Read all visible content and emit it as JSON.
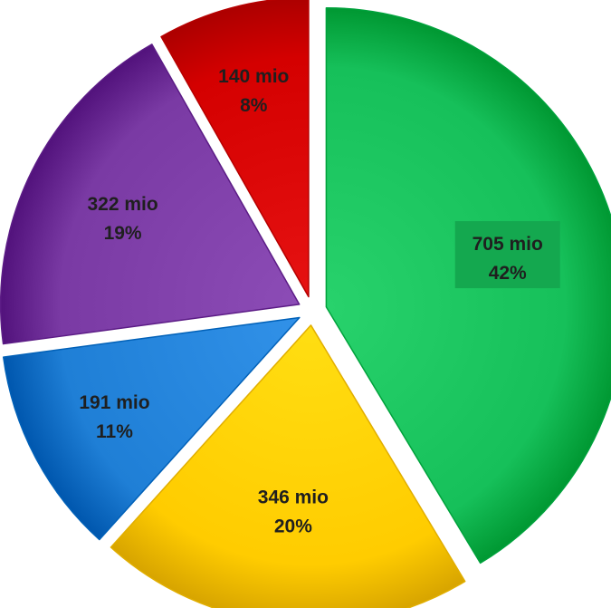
{
  "chart_data": {
    "type": "pie",
    "title": "",
    "start_angle_deg": 0,
    "direction": "clockwise",
    "explode": true,
    "legend": "none",
    "slices": [
      {
        "value": 705,
        "value_label": "705 mio",
        "percent_label": "42%",
        "color": "#16c05a",
        "label_bg": "#14a84f"
      },
      {
        "value": 346,
        "value_label": "346 mio",
        "percent_label": "20%",
        "color": "#ffcc00"
      },
      {
        "value": 191,
        "value_label": "191 mio",
        "percent_label": "11%",
        "color": "#1f7fd6"
      },
      {
        "value": 322,
        "value_label": "322 mio",
        "percent_label": "19%",
        "color": "#7a3aa4"
      },
      {
        "value": 140,
        "value_label": "140 mio",
        "percent_label": "8%",
        "color": "#d40000"
      }
    ]
  }
}
